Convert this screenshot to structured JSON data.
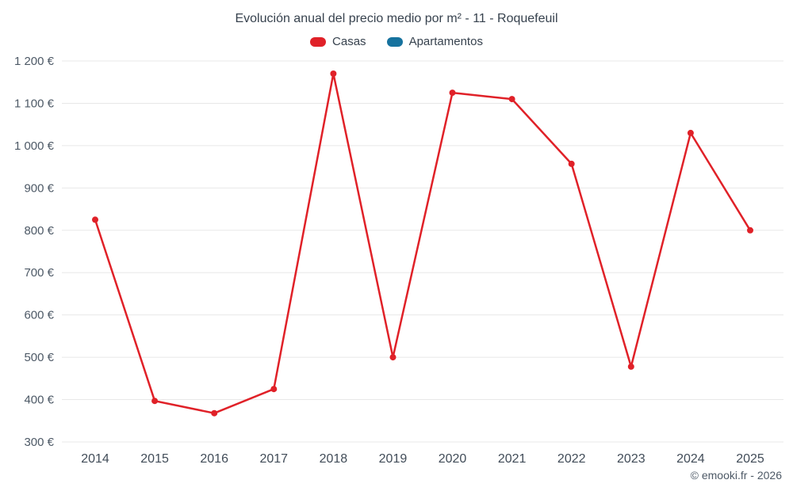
{
  "page": {
    "copyright": "© emooki.fr - 2026"
  },
  "chart_data": {
    "type": "line",
    "title": "Evolución anual del precio medio por m² - 11 - Roquefeuil",
    "legend_position": "top",
    "grid": true,
    "grid_color": "#e8e8e8",
    "categories": [
      "2014",
      "2015",
      "2016",
      "2017",
      "2018",
      "2019",
      "2020",
      "2021",
      "2022",
      "2023",
      "2024",
      "2025"
    ],
    "series": [
      {
        "name": "Casas",
        "color": "#e02128",
        "values": [
          825,
          397,
          368,
          425,
          1170,
          500,
          1125,
          1110,
          957,
          478,
          1030,
          800
        ]
      },
      {
        "name": "Apartamentos",
        "color": "#16729e",
        "values": []
      }
    ],
    "ylim": [
      300,
      1200
    ],
    "ylabel": "",
    "xlabel": "",
    "yticks": [
      {
        "value": 300,
        "label": "300 €"
      },
      {
        "value": 400,
        "label": "400 €"
      },
      {
        "value": 500,
        "label": "500 €"
      },
      {
        "value": 600,
        "label": "600 €"
      },
      {
        "value": 700,
        "label": "700 €"
      },
      {
        "value": 800,
        "label": "800 €"
      },
      {
        "value": 900,
        "label": "900 €"
      },
      {
        "value": 1000,
        "label": "1 000 €"
      },
      {
        "value": 1100,
        "label": "1 100 €"
      },
      {
        "value": 1200,
        "label": "1 200 €"
      }
    ]
  }
}
